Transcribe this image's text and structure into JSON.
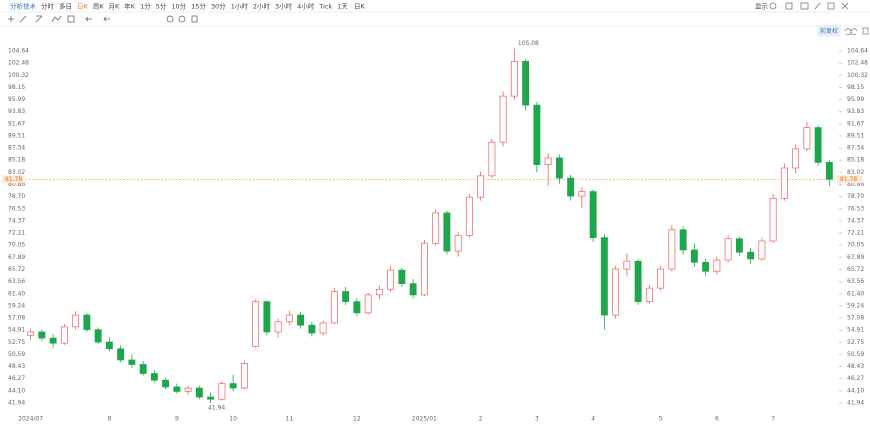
{
  "toolbar": {
    "items": [
      "分析技术",
      "分时",
      "多日",
      "日K",
      "周K",
      "月K",
      "年K",
      "1分",
      "5分",
      "10分",
      "15分",
      "30分",
      "1小时",
      "2小时",
      "3小时",
      "4小时",
      "Tick",
      "1天 · 日K"
    ],
    "active": "日K",
    "right": "显示"
  },
  "chart_data": {
    "type": "candlestick",
    "adjust_button": "前复权",
    "up_color": "#ef6060",
    "down_color": "#1ea64b",
    "grid": false,
    "categories": [
      "2024/07",
      null,
      null,
      null,
      null,
      null,
      null,
      "8",
      null,
      null,
      null,
      null,
      null,
      "9",
      null,
      null,
      null,
      null,
      "10",
      null,
      null,
      null,
      null,
      "11",
      null,
      null,
      null,
      null,
      null,
      "12",
      null,
      null,
      null,
      null,
      null,
      "2025/01",
      null,
      null,
      null,
      null,
      "2",
      null,
      null,
      null,
      null,
      "3",
      null,
      null,
      null,
      null,
      "4",
      null,
      null,
      null,
      null,
      null,
      "5",
      null,
      null,
      null,
      null,
      "6",
      null,
      null,
      null,
      null,
      "7",
      null,
      null,
      null,
      null,
      null
    ],
    "candles": [
      [
        54.0,
        55.2,
        53.2,
        54.6
      ],
      [
        54.6,
        55.0,
        53.0,
        53.5
      ],
      [
        53.5,
        54.2,
        51.8,
        52.6
      ],
      [
        52.6,
        56.0,
        52.3,
        55.5
      ],
      [
        55.5,
        58.3,
        55.0,
        57.6
      ],
      [
        57.6,
        58.0,
        54.6,
        55.0
      ],
      [
        55.0,
        55.4,
        52.4,
        52.8
      ],
      [
        52.8,
        53.6,
        51.2,
        51.6
      ],
      [
        51.6,
        52.2,
        49.2,
        49.6
      ],
      [
        49.6,
        50.6,
        48.2,
        48.8
      ],
      [
        48.8,
        49.4,
        46.8,
        47.2
      ],
      [
        47.2,
        47.8,
        45.6,
        46.0
      ],
      [
        46.0,
        46.4,
        44.4,
        44.8
      ],
      [
        44.8,
        45.4,
        43.6,
        44.0
      ],
      [
        44.0,
        45.0,
        43.4,
        44.6
      ],
      [
        44.6,
        45.0,
        42.6,
        43.0
      ],
      [
        43.0,
        43.8,
        41.94,
        42.6
      ],
      [
        42.6,
        45.8,
        42.4,
        45.4
      ],
      [
        45.4,
        47.0,
        44.0,
        44.6
      ],
      [
        44.6,
        49.5,
        44.4,
        49.0
      ],
      [
        52.0,
        60.4,
        51.8,
        60.0
      ],
      [
        60.0,
        60.2,
        54.0,
        54.6
      ],
      [
        54.6,
        57.0,
        53.6,
        56.4
      ],
      [
        56.4,
        58.4,
        55.8,
        57.6
      ],
      [
        57.6,
        58.2,
        55.2,
        55.8
      ],
      [
        55.8,
        56.4,
        53.8,
        54.4
      ],
      [
        54.4,
        56.6,
        54.0,
        56.2
      ],
      [
        56.2,
        62.4,
        56.0,
        61.8
      ],
      [
        61.8,
        62.6,
        59.4,
        60.0
      ],
      [
        60.0,
        60.6,
        57.4,
        58.0
      ],
      [
        58.0,
        61.6,
        57.6,
        61.2
      ],
      [
        61.2,
        62.8,
        60.4,
        62.2
      ],
      [
        62.2,
        66.4,
        61.8,
        65.6
      ],
      [
        65.6,
        66.0,
        62.6,
        63.2
      ],
      [
        63.2,
        64.0,
        60.6,
        61.2
      ],
      [
        61.2,
        71.0,
        61.0,
        70.4
      ],
      [
        70.4,
        76.4,
        70.0,
        75.8
      ],
      [
        75.8,
        76.2,
        68.4,
        69.0
      ],
      [
        69.0,
        72.4,
        68.0,
        71.8
      ],
      [
        71.8,
        79.2,
        71.4,
        78.6
      ],
      [
        78.6,
        83.2,
        78.0,
        82.4
      ],
      [
        82.4,
        89.0,
        82.0,
        88.4
      ],
      [
        88.4,
        97.4,
        87.6,
        96.6
      ],
      [
        96.6,
        105.08,
        96.0,
        102.8
      ],
      [
        102.8,
        103.2,
        94.0,
        95.0
      ],
      [
        95.0,
        95.6,
        83.0,
        84.4
      ],
      [
        84.4,
        86.4,
        80.6,
        85.6
      ],
      [
        85.6,
        86.2,
        81.0,
        82.0
      ],
      [
        82.0,
        82.6,
        78.0,
        78.8
      ],
      [
        78.8,
        80.4,
        76.6,
        79.6
      ],
      [
        79.6,
        80.0,
        70.6,
        71.4
      ],
      [
        71.4,
        72.0,
        55.0,
        57.6
      ],
      [
        57.6,
        66.4,
        57.0,
        65.8
      ],
      [
        65.8,
        68.6,
        64.6,
        67.2
      ],
      [
        67.2,
        67.6,
        59.4,
        60.0
      ],
      [
        60.0,
        63.0,
        59.6,
        62.4
      ],
      [
        62.4,
        66.4,
        62.0,
        65.8
      ],
      [
        65.8,
        73.6,
        65.4,
        72.8
      ],
      [
        72.8,
        73.4,
        68.4,
        69.2
      ],
      [
        69.2,
        70.4,
        66.2,
        67.0
      ],
      [
        67.0,
        67.6,
        64.6,
        65.4
      ],
      [
        65.4,
        68.0,
        64.8,
        67.4
      ],
      [
        67.4,
        71.8,
        67.0,
        71.2
      ],
      [
        71.2,
        71.6,
        68.2,
        68.8
      ],
      [
        68.8,
        69.6,
        66.8,
        67.6
      ],
      [
        67.6,
        71.4,
        67.2,
        70.8
      ],
      [
        70.8,
        79.2,
        70.4,
        78.4
      ],
      [
        78.4,
        84.6,
        78.0,
        83.8
      ],
      [
        83.8,
        88.0,
        82.8,
        87.2
      ],
      [
        87.2,
        92.0,
        86.8,
        91.0
      ],
      [
        91.0,
        91.4,
        84.2,
        84.8
      ],
      [
        84.8,
        85.2,
        80.6,
        81.78
      ]
    ],
    "high_label": {
      "value": 105.08,
      "label": "105.08"
    },
    "low_label": {
      "value": 41.94,
      "label": "41.94"
    },
    "last_price": {
      "value": 81.78,
      "label": "81.78"
    },
    "ylim": [
      41.94,
      104.64
    ],
    "yticks": [
      {
        "value": 104.64,
        "label": "104.64"
      },
      {
        "value": 102.48,
        "label": "102.48"
      },
      {
        "value": 100.32,
        "label": "100.32"
      },
      {
        "value": 98.15,
        "label": "98.15"
      },
      {
        "value": 95.99,
        "label": "95.99"
      },
      {
        "value": 93.83,
        "label": "93.83"
      },
      {
        "value": 91.67,
        "label": "91.67"
      },
      {
        "value": 89.51,
        "label": "89.51"
      },
      {
        "value": 87.34,
        "label": "87.34"
      },
      {
        "value": 85.18,
        "label": "85.18"
      },
      {
        "value": 83.02,
        "label": "83.02"
      },
      {
        "value": 80.86,
        "label": "80.86"
      },
      {
        "value": 78.7,
        "label": "78.70"
      },
      {
        "value": 76.53,
        "label": "76.53"
      },
      {
        "value": 74.37,
        "label": "74.37"
      },
      {
        "value": 72.21,
        "label": "72.21"
      },
      {
        "value": 70.05,
        "label": "70.05"
      },
      {
        "value": 67.89,
        "label": "67.89"
      },
      {
        "value": 65.72,
        "label": "65.72"
      },
      {
        "value": 63.56,
        "label": "63.56"
      },
      {
        "value": 61.4,
        "label": "61.40"
      },
      {
        "value": 59.24,
        "label": "59.24"
      },
      {
        "value": 57.08,
        "label": "57.08"
      },
      {
        "value": 54.91,
        "label": "54.91"
      },
      {
        "value": 52.75,
        "label": "52.75"
      },
      {
        "value": 50.59,
        "label": "50.59"
      },
      {
        "value": 48.43,
        "label": "48.43"
      },
      {
        "value": 46.27,
        "label": "46.27"
      },
      {
        "value": 44.1,
        "label": "44.10"
      },
      {
        "value": 41.94,
        "label": "41.94"
      }
    ]
  }
}
